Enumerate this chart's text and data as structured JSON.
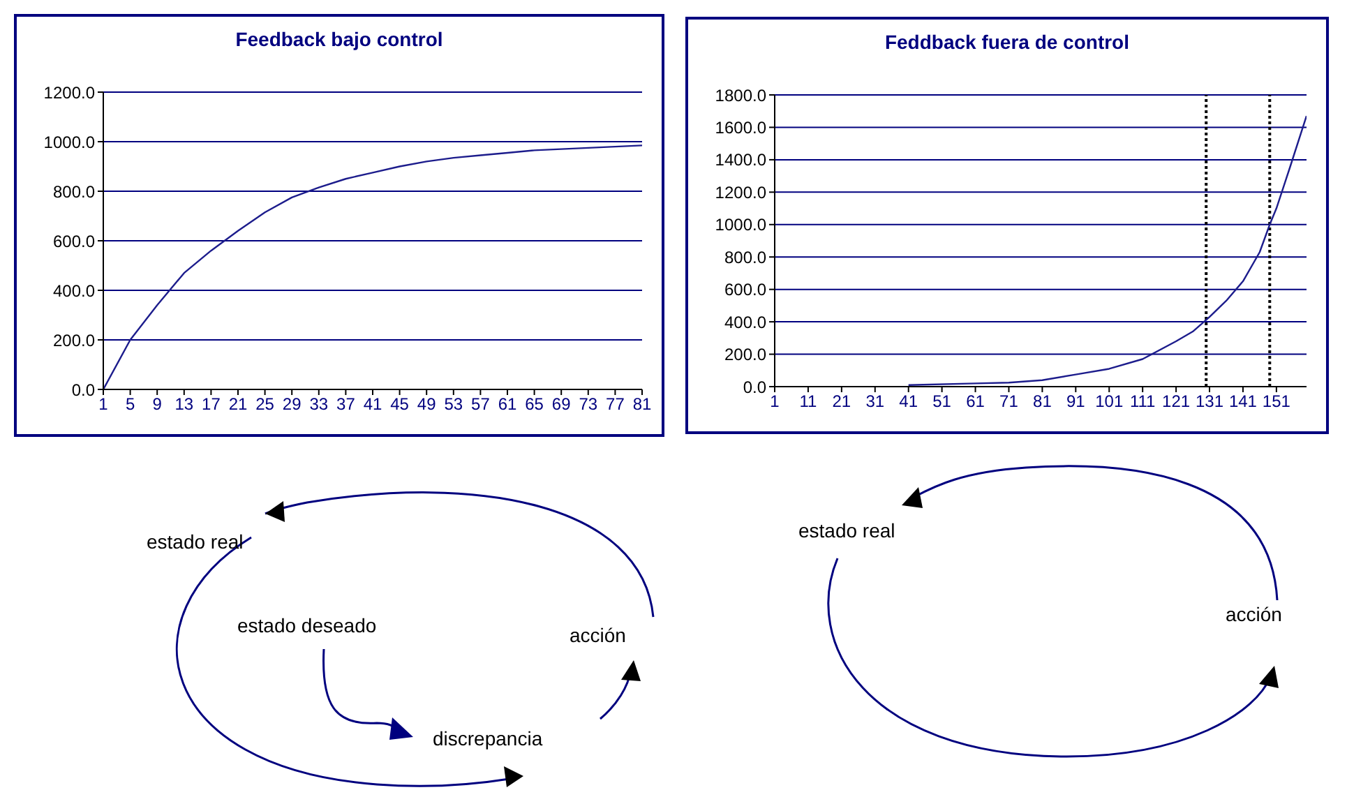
{
  "chart_data": [
    {
      "type": "line",
      "title": "Feedback bajo control",
      "x": [
        1,
        5,
        9,
        13,
        17,
        21,
        25,
        29,
        33,
        37,
        41,
        45,
        49,
        53,
        57,
        61,
        65,
        69,
        73,
        77,
        81
      ],
      "series": [
        {
          "color": "#1c1c8c",
          "values": [
            0,
            200,
            340,
            470,
            560,
            640,
            715,
            775,
            815,
            850,
            875,
            900,
            920,
            935,
            945,
            955,
            965,
            970,
            975,
            980,
            985
          ]
        }
      ],
      "xlim": [
        1,
        81
      ],
      "xticks": [
        1,
        5,
        9,
        13,
        17,
        21,
        25,
        29,
        33,
        37,
        41,
        45,
        49,
        53,
        57,
        61,
        65,
        69,
        73,
        77,
        81
      ],
      "ylim": [
        0,
        1200
      ],
      "yticks": [
        {
          "value": 0,
          "label": "0.0"
        },
        {
          "value": 200,
          "label": "200.0"
        },
        {
          "value": 400,
          "label": "400.0"
        },
        {
          "value": 600,
          "label": "600.0"
        },
        {
          "value": 800,
          "label": "800.0"
        },
        {
          "value": 1000,
          "label": "1000.0"
        },
        {
          "value": 1200,
          "label": "1200.0"
        }
      ],
      "grid": "y",
      "marker": "none",
      "line_style": "solid"
    },
    {
      "type": "line",
      "title": "Feddback fuera de control",
      "x": [
        41,
        61,
        71,
        81,
        91,
        101,
        111,
        121,
        126,
        131,
        136,
        141,
        146,
        149,
        151,
        155,
        160
      ],
      "series": [
        {
          "color": "#1c1c8c",
          "values": [
            10,
            20,
            25,
            40,
            75,
            110,
            170,
            280,
            340,
            430,
            530,
            650,
            830,
            1000,
            1100,
            1350,
            1670
          ]
        }
      ],
      "xlim": [
        1,
        160
      ],
      "xticks": [
        1,
        11,
        21,
        31,
        41,
        51,
        61,
        71,
        81,
        91,
        101,
        111,
        121,
        131,
        141,
        151
      ],
      "ylim": [
        0,
        1800
      ],
      "yticks": [
        {
          "value": 0,
          "label": "0.0"
        },
        {
          "value": 200,
          "label": "200.0"
        },
        {
          "value": 400,
          "label": "400.0"
        },
        {
          "value": 600,
          "label": "600.0"
        },
        {
          "value": 800,
          "label": "800.0"
        },
        {
          "value": 1000,
          "label": "1000.0"
        },
        {
          "value": 1200,
          "label": "1200.0"
        },
        {
          "value": 1400,
          "label": "1400.0"
        },
        {
          "value": 1600,
          "label": "1600.0"
        },
        {
          "value": 1800,
          "label": "1800.0"
        }
      ],
      "ref_lines": [
        {
          "axis": "x",
          "value": 130,
          "color": "#000000",
          "line_style": "dotted"
        },
        {
          "axis": "x",
          "value": 149,
          "color": "#000000",
          "line_style": "dotted"
        }
      ],
      "grid": "y",
      "marker": "none",
      "line_style": "solid"
    },
    {
      "type": "other",
      "annotations": [
        "estado real",
        "estado deseado",
        "acción",
        "discrepancia"
      ]
    },
    {
      "type": "other",
      "annotations": [
        "estado real",
        "acción"
      ]
    }
  ]
}
